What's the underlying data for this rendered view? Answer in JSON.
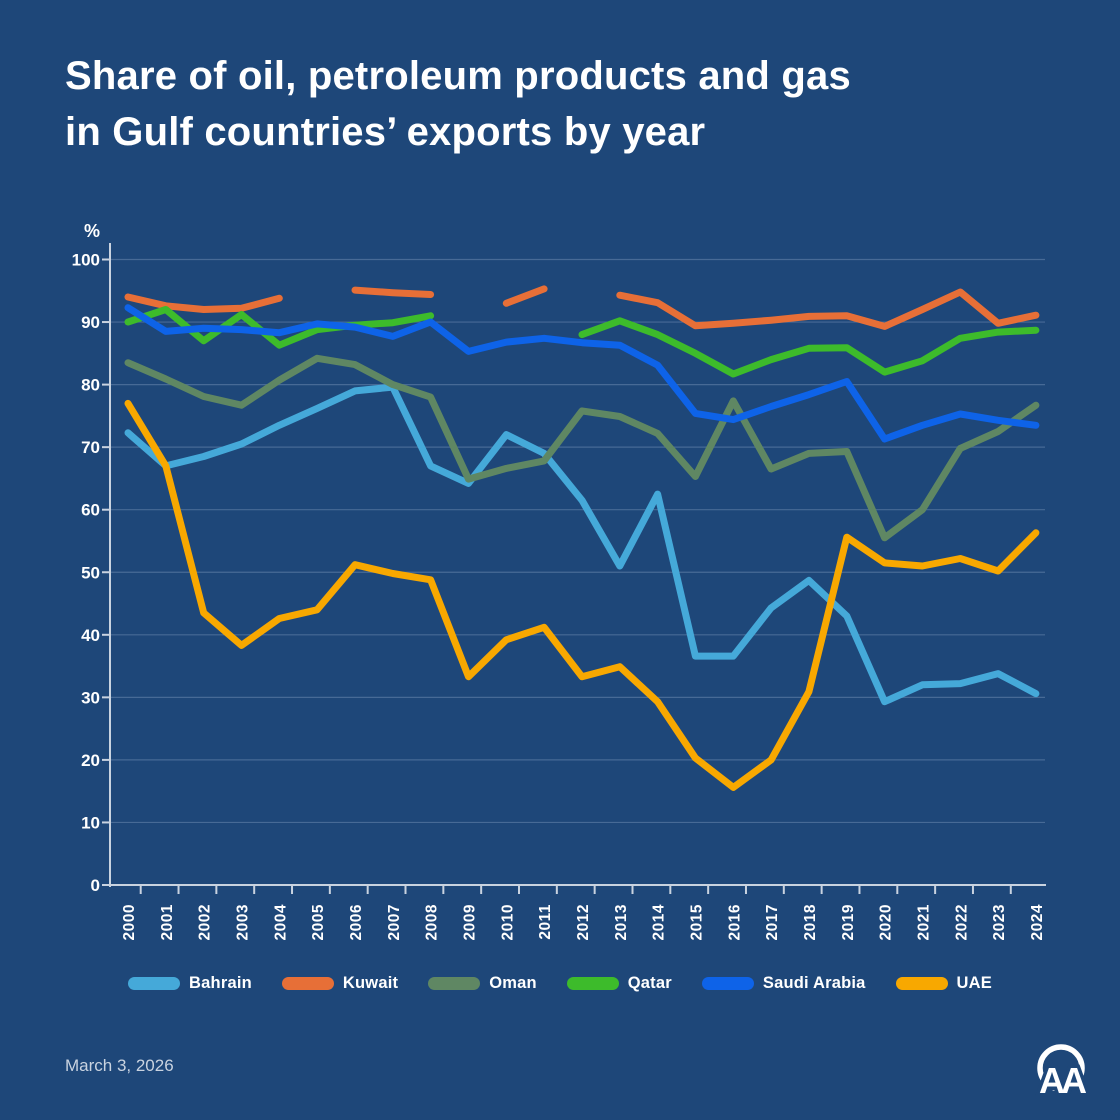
{
  "title": {
    "line1": "Share of oil, petroleum products and gas",
    "line2": "in Gulf countries’ exports by year"
  },
  "date_text": "March 3, 2026",
  "logo_text": "AA",
  "colors": {
    "background": "#1e4779",
    "grid": "#4f719c",
    "axis": "#c9d3e0",
    "text": "#ffffff"
  },
  "chart_data": {
    "type": "line",
    "unit_label": "%",
    "x": [
      2000,
      2001,
      2002,
      2003,
      2004,
      2005,
      2006,
      2007,
      2008,
      2009,
      2010,
      2011,
      2012,
      2013,
      2014,
      2015,
      2016,
      2017,
      2018,
      2019,
      2020,
      2021,
      2022,
      2023,
      2024
    ],
    "ylim": [
      0,
      100
    ],
    "y_tick_step": 10,
    "grid": true,
    "legend_position": "bottom",
    "series": [
      {
        "name": "Bahrain",
        "color": "#45a9d9",
        "values": [
          72.3,
          67,
          68.5,
          70.5,
          73.5,
          76.2,
          79,
          79.6,
          67,
          64.2,
          72,
          69,
          61.5,
          51,
          62.5,
          36.6,
          36.6,
          44.3,
          48.7,
          43,
          29.3,
          32,
          32.2,
          33.8,
          30.6
        ]
      },
      {
        "name": "Kuwait",
        "color": "#e76f37",
        "values": [
          94,
          92.6,
          92,
          92.2,
          93.8,
          null,
          95.1,
          94.7,
          94.4,
          null,
          93,
          95.3,
          null,
          94.3,
          93.1,
          89.4,
          89.8,
          90.3,
          90.9,
          91,
          89.3,
          92,
          94.8,
          89.8,
          91.1
        ]
      },
      {
        "name": "Oman",
        "color": "#5f8763",
        "values": [
          83.5,
          80.9,
          78.1,
          76.7,
          80.7,
          84.2,
          83.2,
          80,
          78,
          64.9,
          66.6,
          67.8,
          75.8,
          74.9,
          72.2,
          65.3,
          77.4,
          66.5,
          69,
          69.3,
          55.5,
          60,
          69.8,
          72.5,
          76.7
        ]
      },
      {
        "name": "Qatar",
        "color": "#3dbb2b",
        "values": [
          90,
          92,
          87,
          91.2,
          86.3,
          88.8,
          89.5,
          89.9,
          91,
          null,
          null,
          null,
          88,
          90.2,
          88,
          85,
          81.7,
          84,
          85.8,
          85.9,
          82,
          83.8,
          87.4,
          88.4,
          88.7
        ]
      },
      {
        "name": "Saudi Arabia",
        "color": "#0e63e8",
        "values": [
          92.3,
          88.5,
          89,
          88.8,
          88.3,
          89.7,
          89.2,
          87.7,
          90,
          85.3,
          86.8,
          87.4,
          86.7,
          86.3,
          83.1,
          75.4,
          74.4,
          76.5,
          78.4,
          80.5,
          71.3,
          73.5,
          75.3,
          74.3,
          73.5
        ]
      },
      {
        "name": "UAE",
        "color": "#f8a800",
        "values": [
          77,
          67,
          43.5,
          38.3,
          42.6,
          44,
          51.2,
          49.8,
          48.8,
          33.3,
          39.2,
          41.2,
          33.3,
          34.9,
          29.3,
          20.3,
          15.6,
          20,
          30.9,
          55.6,
          51.5,
          51,
          52.2,
          50.2,
          56.3
        ]
      }
    ]
  }
}
